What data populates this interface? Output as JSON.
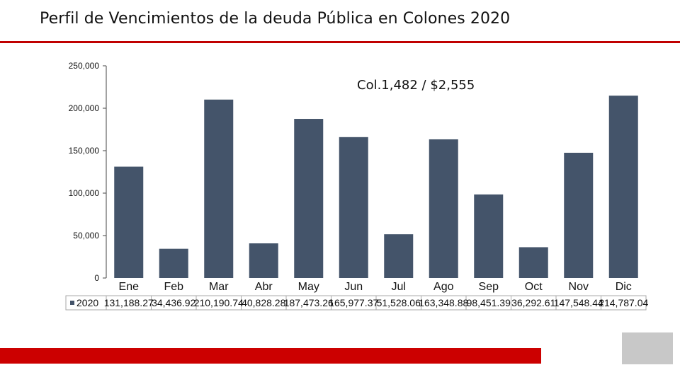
{
  "page": {
    "title": "Perfil de Vencimientos de la deuda Pública en Colones 2020"
  },
  "colors": {
    "bar": "#44546a",
    "accent_red": "#cc0000",
    "gray_box": "#c8c8c8"
  },
  "chart_data": {
    "type": "bar",
    "title": "",
    "annotation": "Col.1,482 / $2,555",
    "xlabel": "",
    "ylabel": "",
    "ylim": [
      0,
      250000
    ],
    "yticks": [
      "0",
      "50,000",
      "100,000",
      "150,000",
      "200,000",
      "250,000"
    ],
    "grid": false,
    "categories": [
      "Ene",
      "Feb",
      "Mar",
      "Abr",
      "May",
      "Jun",
      "Jul",
      "Ago",
      "Sep",
      "Oct",
      "Nov",
      "Dic"
    ],
    "series": [
      {
        "name": "2020",
        "values": [
          131188.27,
          34436.92,
          210190.74,
          40828.28,
          187473.26,
          165977.37,
          51528.06,
          163348.88,
          98451.39,
          36292.61,
          147548.44,
          214787.04
        ],
        "value_labels": [
          "131,188.27",
          "34,436.92",
          "210,190.74",
          "40,828.28",
          "187,473.26",
          "165,977.37",
          "51,528.06",
          "163,348.88",
          "98,451.39",
          "36,292.61",
          "147,548.44",
          "214,787.04"
        ]
      }
    ],
    "legend_placement": "data-table"
  }
}
